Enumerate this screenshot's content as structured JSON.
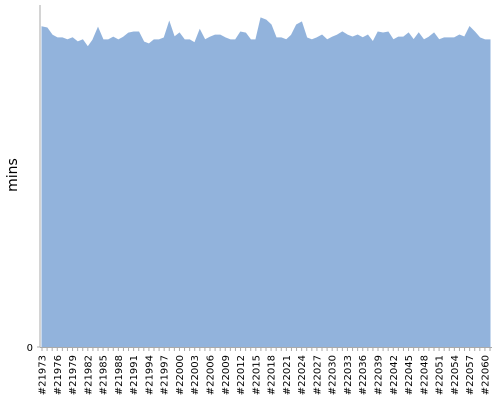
{
  "chart_data": {
    "type": "area",
    "y_label": "mins",
    "color": "#92b3dc",
    "categories": [
      "#21973",
      null,
      null,
      "#21976",
      null,
      null,
      "#21979",
      null,
      null,
      "#21982",
      null,
      null,
      "#21985",
      null,
      null,
      "#21988",
      null,
      null,
      "#21991",
      null,
      null,
      "#21994",
      null,
      null,
      "#21997",
      null,
      null,
      "#22000",
      null,
      null,
      "#22003",
      null,
      null,
      "#22006",
      null,
      null,
      "#22009",
      null,
      null,
      "#22012",
      null,
      null,
      "#22015",
      null,
      null,
      "#22018",
      null,
      null,
      "#22021",
      null,
      null,
      "#22024",
      null,
      null,
      "#22027",
      null,
      null,
      "#22030",
      null,
      null,
      "#22033",
      null,
      null,
      "#22036",
      null,
      null,
      "#22039",
      null,
      null,
      "#22042",
      null,
      null,
      "#22045",
      null,
      null,
      "#22048",
      null,
      null,
      "#22051",
      null,
      null,
      "#22054",
      null,
      null,
      "#22057",
      null,
      null,
      "#22060",
      null
    ],
    "values": [
      93.6,
      93.3,
      91.2,
      90.4,
      90.4,
      89.8,
      90.4,
      89.2,
      89.8,
      87.7,
      89.8,
      93.3,
      89.8,
      89.8,
      90.6,
      89.8,
      90.6,
      91.8,
      92.1,
      92.1,
      89.2,
      88.6,
      89.8,
      89.8,
      90.4,
      95.0,
      90.6,
      91.8,
      89.8,
      89.8,
      88.9,
      92.7,
      89.8,
      90.6,
      91.2,
      91.2,
      90.4,
      89.8,
      89.8,
      92.1,
      91.8,
      89.8,
      89.8,
      96.2,
      95.6,
      94.2,
      90.4,
      90.4,
      89.8,
      91.2,
      94.2,
      95.0,
      90.4,
      89.8,
      90.4,
      91.2,
      89.8,
      90.6,
      91.2,
      92.1,
      91.2,
      90.6,
      91.2,
      90.4,
      91.2,
      89.2,
      92.1,
      91.8,
      92.1,
      89.8,
      90.6,
      90.6,
      91.8,
      89.8,
      91.8,
      89.8,
      90.6,
      91.8,
      89.8,
      90.4,
      90.4,
      90.4,
      91.2,
      90.6,
      93.6,
      92.1,
      90.4,
      89.8,
      89.8
    ],
    "ylim": [
      0,
      100
    ],
    "yticks": [
      0
    ]
  }
}
